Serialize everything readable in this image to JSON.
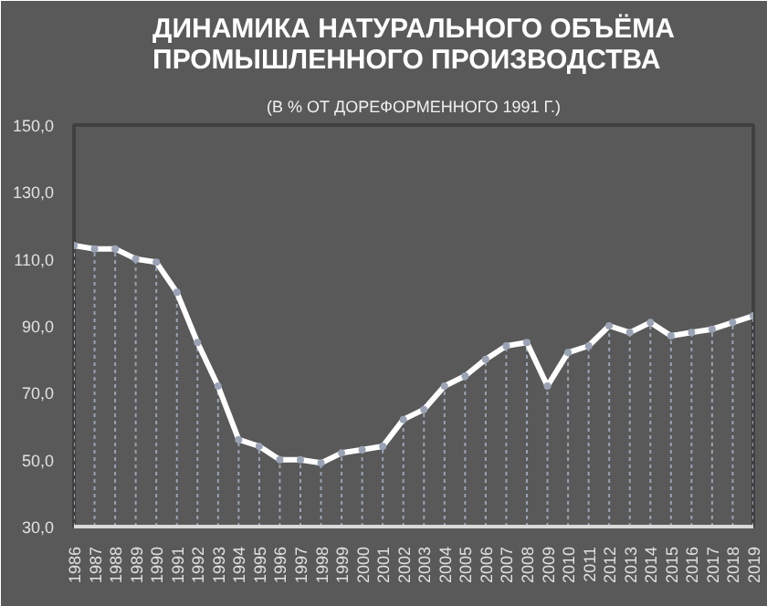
{
  "chart_data": {
    "type": "line",
    "title": "ДИНАМИКА НАТУРАЛЬНОГО ОБЪЁМА\nПРОМЫШЛЕННОГО ПРОИЗВОДСТВА",
    "subtitle": "(В % ОТ ДОРЕФОРМЕННОГО 1991 Г.)",
    "categories": [
      "1986",
      "1987",
      "1988",
      "1989",
      "1990",
      "1991",
      "1992",
      "1993",
      "1994",
      "1995",
      "1996",
      "1997",
      "1998",
      "1999",
      "2000",
      "2001",
      "2002",
      "2003",
      "2004",
      "2005",
      "2006",
      "2007",
      "2008",
      "2009",
      "2010",
      "2011",
      "2012",
      "2013",
      "2014",
      "2015",
      "2016",
      "2017",
      "2018",
      "2019"
    ],
    "series": [
      {
        "type": "lollipop",
        "line_style": "dashed",
        "color": "#9aa3b5",
        "values": [
          114,
          113,
          113,
          110,
          109,
          100,
          85,
          72,
          56,
          54,
          50,
          50,
          49,
          52,
          53,
          54,
          62,
          65,
          72,
          75,
          80,
          84,
          85,
          72,
          82,
          84,
          90,
          88,
          91,
          87,
          88,
          89,
          91,
          93
        ]
      },
      {
        "color": "#ffffff",
        "values": [
          114,
          113,
          113,
          110,
          109,
          100,
          85,
          72,
          56,
          54,
          50,
          50,
          49,
          52,
          53,
          54,
          62,
          65,
          72,
          75,
          80,
          84,
          85,
          72,
          82,
          84,
          90,
          88,
          91,
          87,
          88,
          89,
          91,
          93
        ]
      }
    ],
    "ylim": [
      30,
      150
    ],
    "yticks": [
      {
        "value": 30,
        "label": "30,0"
      },
      {
        "value": 50,
        "label": "50,0"
      },
      {
        "value": 70,
        "label": "70,0"
      },
      {
        "value": 90,
        "label": "90,0"
      },
      {
        "value": 110,
        "label": "110,0"
      },
      {
        "value": 130,
        "label": "130,0"
      },
      {
        "value": 150,
        "label": "150,0"
      }
    ],
    "grid": false,
    "marker": "none",
    "line_style": "solid"
  }
}
